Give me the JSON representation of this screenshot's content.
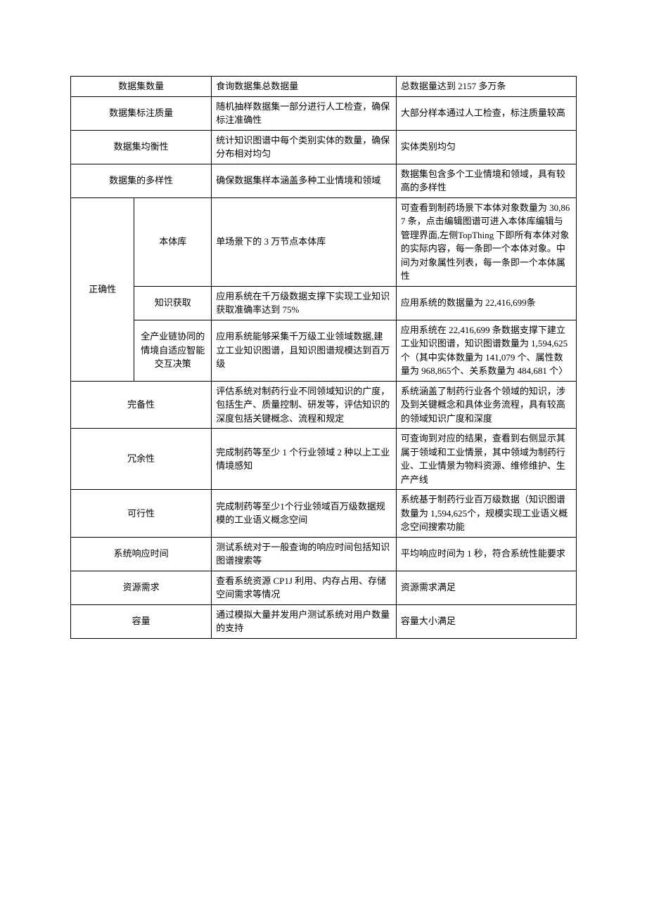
{
  "colwidths": {
    "a": 84,
    "b": 102,
    "c": 244,
    "d": 238
  },
  "rows": [
    {
      "c1span": 2,
      "c1": "数据集数量",
      "c1_align": "center",
      "c3": "食询数据集总数据量",
      "c4": "总数据量达到 2157 多万条"
    },
    {
      "c1span": 2,
      "c1": "数据集标注质量",
      "c1_align": "center",
      "c3": "随机抽样数据集一部分进行人工检查，确保标注准确性",
      "c4": "大部分样本通过人工检查，标注质量较高"
    },
    {
      "c1span": 2,
      "c1": "数据集均衡性",
      "c1_align": "center",
      "c3": "统计知识图谱中每个类别实体的数量，确保分布相对均匀",
      "c4": "实体类别均匀"
    },
    {
      "c1span": 2,
      "c1": "数据集的多样性",
      "c1_align": "center",
      "c3": "确保数据集样本涵盖多种工业情境和领域",
      "c4": "数据集包含多个工业情境和领域，具有较高的多样性"
    },
    {
      "c1": "正确性",
      "c1_align": "center",
      "c1_rowspan": 3,
      "c2": "本体库",
      "c2_align": "center",
      "c3": "单场景下的 3 万节点本体库",
      "c4": "可查看到制药场景下本体对象数量为 30,867 条，点击编辑图谱可进入本体库编辑与管理界面,左侧TopThing 下即所有本体对象的实际内容，每一条即一个本体对象。中间为对象属性列表，每一条即一个本体属性"
    },
    {
      "c2": "知识获取",
      "c2_align": "center",
      "c3": "应用系统在千万级数据支撑下实现工业知识获取准确率达到 75%",
      "c4": "应用系统的数据量为 22,416,699条"
    },
    {
      "c2": "全产业链协同的情境自适应智能交互决策",
      "c2_align": "center",
      "c3": "应用系统能够采集千万级工业领域数据,建立工业知识图谱，且知识图谱规模达到百万级",
      "c4": "应用系统在 22,416,699 条数据支撑下建立工业知识图谱，知识图谱数量为 1,594,625 个（其中实体数量为 141,079 个、属性数量为 968,865个、关系数量为 484,681 个〉"
    },
    {
      "c1span": 2,
      "c1": "完备性",
      "c1_align": "center",
      "c3": "评估系统对制药行业不同领域知识的广度，包括生产、质量控制、研发等，评估知识的深度包括关键概念、流程和规定",
      "c4": "系统涵盖了制药行业各个领域的知识，涉及到关键概念和具体业务流程，具有较高的领域知识广度和深度"
    },
    {
      "c1span": 2,
      "c1": "冗余性",
      "c1_align": "center",
      "c3": "完成制药等至少 1 个行业领域 2 种以上工业情境感知",
      "c4": "可查询到对应的结果，查看到右侧显示其属于领域和工业情景，其中领域为制药行业、工业情景为物料资源、维修维护、生产产线"
    },
    {
      "c1span": 2,
      "c1": "可行性",
      "c1_align": "center",
      "c3": "完成制药等至少1个行业领域百万级数据规模的工业语义概念空间",
      "c4": "系统基于制药行业百万级数据（知识图谱数量为 1,594,625个，规模实现工业语义概念空间搜索功能"
    },
    {
      "c1span": 2,
      "c1": "系统响应时间",
      "c1_align": "center",
      "c3": "测试系统对于一般查询的响应时间包括知识图谱搜索等",
      "c4": "平均响应时间为 1 秒，符合系统性能要求"
    },
    {
      "c1span": 2,
      "c1": "资源需求",
      "c1_align": "center",
      "c3": "查看系统资源 CP1J 利用、内存占用、存储空间需求等情况",
      "c4": "资源需求满足"
    },
    {
      "c1span": 2,
      "c1": "容量",
      "c1_align": "center",
      "c3": "通过模拟大量并发用户测试系统对用户数量的支持",
      "c4": "容量大小满足"
    }
  ]
}
